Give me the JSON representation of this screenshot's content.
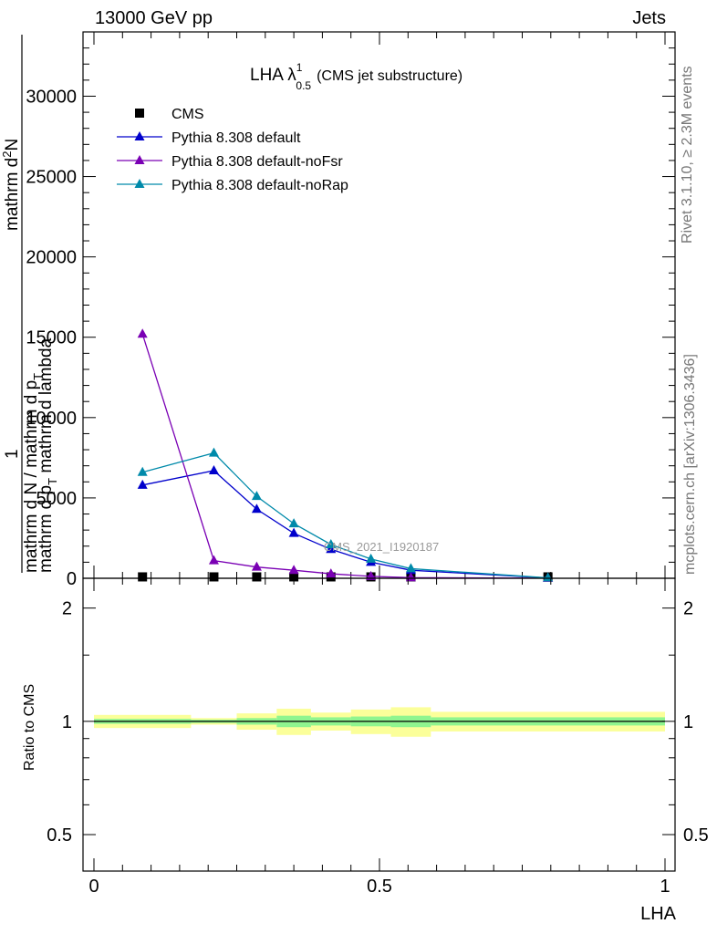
{
  "header": {
    "energy_label": "13000 GeV pp",
    "process_label": "Jets"
  },
  "side_labels": {
    "rivet": "Rivet 3.1.10, ≥ 2.3M events",
    "mcplots": "mcplots.cern.ch [arXiv:1306.3436]"
  },
  "plot_title": {
    "main": "LHA λ",
    "sup": "1",
    "sub": "0.5",
    "suffix": "(CMS jet substructure)"
  },
  "watermark": "CMS_2021_I1920187",
  "colors": {
    "data": "#000000",
    "default": "#0000cc",
    "noFsr": "#7a00b4",
    "noRap": "#008aaa",
    "band_inner": "#8ff58f",
    "band_outer": "#fbff9a"
  },
  "chart_data": [
    {
      "type": "line",
      "panel": "main",
      "ylabel_lines": [
        "1",
        "mathrm d N / mathrm d p_T",
        "mathrm d^2N",
        "mathrm d p_T mathrm d lambda"
      ],
      "ylabel_text": {
        "one": "1",
        "lower": "mathrm d N / mathrm d p",
        "lower_sub": "T",
        "upper": "mathrm d",
        "upper_sup": "2",
        "upper_rest": "N",
        "denom": "mathrm d p",
        "denom_sub": "T",
        "denom_rest": " mathrm d lambda"
      },
      "xlim": [
        0,
        1
      ],
      "ylim": [
        0,
        34000
      ],
      "y_ticks": [
        0,
        5000,
        10000,
        15000,
        20000,
        25000,
        30000
      ],
      "y_tick_labels": [
        "0",
        "5000",
        "10000",
        "15000",
        "20000",
        "25000",
        "30000"
      ],
      "legend_position": "top-left",
      "series": [
        {
          "name": "CMS",
          "key": "data",
          "marker": "square",
          "x": [
            0.085,
            0.21,
            0.285,
            0.35,
            0.415,
            0.485,
            0.555,
            0.795
          ],
          "y": [
            30,
            30,
            30,
            30,
            30,
            30,
            30,
            30
          ]
        },
        {
          "name": "Pythia 8.308 default",
          "key": "default",
          "marker": "triangle",
          "x": [
            0.085,
            0.21,
            0.285,
            0.35,
            0.415,
            0.485,
            0.555,
            0.795
          ],
          "y": [
            5800,
            6700,
            4300,
            2800,
            1800,
            1000,
            500,
            20
          ]
        },
        {
          "name": "Pythia 8.308 default-noFsr",
          "key": "noFsr",
          "marker": "triangle",
          "x": [
            0.085,
            0.21,
            0.285,
            0.35,
            0.415,
            0.485,
            0.555,
            0.795
          ],
          "y": [
            15200,
            1100,
            700,
            500,
            280,
            120,
            40,
            5
          ]
        },
        {
          "name": "Pythia 8.308 default-noRap",
          "key": "noRap",
          "marker": "triangle",
          "x": [
            0.085,
            0.21,
            0.285,
            0.35,
            0.415,
            0.485,
            0.555,
            0.795
          ],
          "y": [
            6600,
            7800,
            5100,
            3400,
            2100,
            1200,
            600,
            25
          ]
        }
      ]
    },
    {
      "type": "area",
      "panel": "ratio",
      "ylabel": "Ratio to CMS",
      "xlabel": "LHA",
      "xlim": [
        0,
        1
      ],
      "ylim": [
        0.4,
        2.4
      ],
      "log_y": true,
      "y_ticks": [
        0.5,
        1,
        2
      ],
      "y_tick_labels": [
        "0.5",
        "1",
        "2"
      ],
      "x_ticks": [
        0,
        0.5,
        1
      ],
      "x_tick_labels": [
        "0",
        "0.5",
        "1"
      ],
      "bins": [
        {
          "x0": 0.0,
          "x1": 0.17,
          "inner": [
            0.985,
            1.015
          ],
          "outer": [
            0.96,
            1.04
          ]
        },
        {
          "x0": 0.17,
          "x1": 0.25,
          "inner": [
            0.99,
            1.01
          ],
          "outer": [
            0.98,
            1.02
          ]
        },
        {
          "x0": 0.25,
          "x1": 0.32,
          "inner": [
            0.98,
            1.02
          ],
          "outer": [
            0.95,
            1.05
          ]
        },
        {
          "x0": 0.32,
          "x1": 0.38,
          "inner": [
            0.965,
            1.035
          ],
          "outer": [
            0.92,
            1.08
          ]
        },
        {
          "x0": 0.38,
          "x1": 0.45,
          "inner": [
            0.975,
            1.025
          ],
          "outer": [
            0.945,
            1.055
          ]
        },
        {
          "x0": 0.45,
          "x1": 0.52,
          "inner": [
            0.97,
            1.03
          ],
          "outer": [
            0.925,
            1.075
          ]
        },
        {
          "x0": 0.52,
          "x1": 0.59,
          "inner": [
            0.965,
            1.035
          ],
          "outer": [
            0.91,
            1.09
          ]
        },
        {
          "x0": 0.59,
          "x1": 1.0,
          "inner": [
            0.975,
            1.025
          ],
          "outer": [
            0.94,
            1.06
          ]
        }
      ]
    }
  ]
}
